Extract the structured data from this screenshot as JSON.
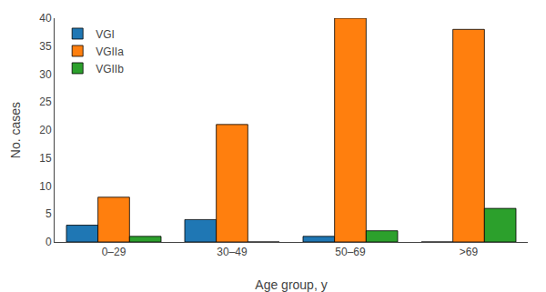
{
  "chart_data": {
    "type": "bar",
    "categories": [
      "0–29",
      "30–49",
      "50–69",
      ">69"
    ],
    "series": [
      {
        "name": "VGI",
        "values": [
          3,
          4,
          1,
          0
        ]
      },
      {
        "name": "VGIIa",
        "values": [
          8,
          21,
          40,
          38
        ]
      },
      {
        "name": "VGIIb",
        "values": [
          1,
          0,
          2,
          6
        ]
      }
    ],
    "xlabel": "Age group, y",
    "ylabel": "No. cases",
    "ylim": [
      0,
      40
    ],
    "yticks": [
      0,
      5,
      10,
      15,
      20,
      25,
      30,
      35,
      40
    ],
    "grid": false,
    "legend": "upper left"
  }
}
